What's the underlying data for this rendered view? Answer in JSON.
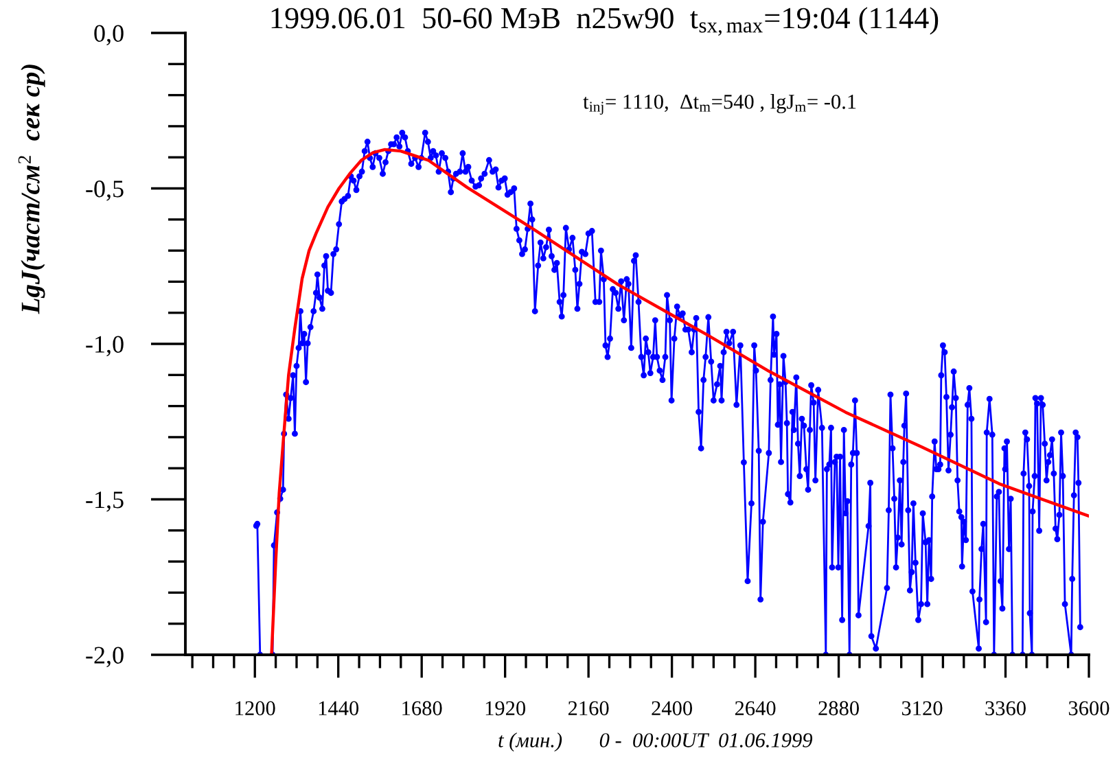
{
  "chart_data": {
    "type": "line",
    "title": "1999.06.01  50-60 МэВ  n25w90  t$_{sx,max}$=19:04 (1144)",
    "xlabel": "t (мин.)       0 -  00:00UT  01.06.1999",
    "ylabel": "LgJ(част/см$^{2}$  сек ср)",
    "annotations": [
      "t$_{inj}$= 1110,  Δt$_{m}$=540 , lgJ$_{m}$= -0.1"
    ],
    "xlim": [
      1000,
      3600
    ],
    "ylim": [
      -2.0,
      0.0
    ],
    "xticks": [
      {
        "value": 1020,
        "label": null
      },
      {
        "value": 1080,
        "label": null
      },
      {
        "value": 1140,
        "label": null
      },
      1200,
      {
        "value": 1260,
        "label": null
      },
      {
        "value": 1320,
        "label": null
      },
      {
        "value": 1380,
        "label": null
      },
      1440,
      {
        "value": 1500,
        "label": null
      },
      {
        "value": 1560,
        "label": null
      },
      {
        "value": 1620,
        "label": null
      },
      1680,
      {
        "value": 1740,
        "label": null
      },
      {
        "value": 1800,
        "label": null
      },
      {
        "value": 1860,
        "label": null
      },
      1920,
      {
        "value": 1980,
        "label": null
      },
      {
        "value": 2040,
        "label": null
      },
      {
        "value": 2100,
        "label": null
      },
      2160,
      {
        "value": 2220,
        "label": null
      },
      {
        "value": 2280,
        "label": null
      },
      {
        "value": 2340,
        "label": null
      },
      2400,
      {
        "value": 2460,
        "label": null
      },
      {
        "value": 2520,
        "label": null
      },
      {
        "value": 2580,
        "label": null
      },
      2640,
      {
        "value": 2700,
        "label": null
      },
      {
        "value": 2760,
        "label": null
      },
      {
        "value": 2820,
        "label": null
      },
      2880,
      {
        "value": 2940,
        "label": null
      },
      {
        "value": 3000,
        "label": null
      },
      {
        "value": 3060,
        "label": null
      },
      3120,
      {
        "value": 3180,
        "label": null
      },
      {
        "value": 3240,
        "label": null
      },
      {
        "value": 3300,
        "label": null
      },
      3360,
      {
        "value": 3420,
        "label": null
      },
      {
        "value": 3480,
        "label": null
      },
      {
        "value": 3540,
        "label": null
      },
      3600
    ],
    "yticks": [
      {
        "value": -2.0,
        "label": "-2,0"
      },
      {
        "value": -1.9,
        "label": null
      },
      {
        "value": -1.8,
        "label": null
      },
      {
        "value": -1.7,
        "label": null
      },
      {
        "value": -1.6,
        "label": null
      },
      {
        "value": -1.5,
        "label": "-1,5"
      },
      {
        "value": -1.4,
        "label": null
      },
      {
        "value": -1.3,
        "label": null
      },
      {
        "value": -1.2,
        "label": null
      },
      {
        "value": -1.1,
        "label": null
      },
      {
        "value": -1.0,
        "label": "-1,0"
      },
      {
        "value": -0.9,
        "label": null
      },
      {
        "value": -0.8,
        "label": null
      },
      {
        "value": -0.7,
        "label": null
      },
      {
        "value": -0.6,
        "label": null
      },
      {
        "value": -0.5,
        "label": "-0,5"
      },
      {
        "value": -0.4,
        "label": null
      },
      {
        "value": -0.3,
        "label": null
      },
      {
        "value": -0.2,
        "label": null
      },
      {
        "value": -0.1,
        "label": null
      },
      {
        "value": 0.0,
        "label": "0,0"
      }
    ],
    "series": [
      {
        "color": "#0000ff",
        "marker": "circle",
        "x": [
          1204,
          1207,
          1215,
          1233,
          1251,
          1255,
          1264,
          1273,
          1281,
          1284,
          1290,
          1297,
          1303,
          1310,
          1315,
          1320,
          1326,
          1331,
          1336,
          1342,
          1347,
          1352,
          1360,
          1369,
          1376,
          1380,
          1386,
          1394,
          1400,
          1405,
          1410,
          1419,
          1426,
          1434,
          1442,
          1450,
          1458,
          1468,
          1476,
          1484,
          1492,
          1501,
          1508,
          1516,
          1524,
          1531,
          1539,
          1547,
          1558,
          1568,
          1576,
          1584,
          1592,
          1600,
          1608,
          1616,
          1624,
          1632,
          1640,
          1650,
          1661,
          1671,
          1679,
          1690,
          1698,
          1706,
          1713,
          1721,
          1729,
          1738,
          1748,
          1756,
          1764,
          1771,
          1779,
          1790,
          1798,
          1806,
          1814,
          1824,
          1835,
          1845,
          1851,
          1861,
          1874,
          1884,
          1893,
          1901,
          1910,
          1919,
          1927,
          1936,
          1946,
          1953,
          1961,
          1969,
          1977,
          1985,
          1993,
          1998,
          2006,
          2015,
          2022,
          2030,
          2038,
          2046,
          2054,
          2062,
          2069,
          2077,
          2083,
          2088,
          2095,
          2104,
          2114,
          2122,
          2128,
          2134,
          2141,
          2151,
          2160,
          2170,
          2180,
          2191,
          2196,
          2204,
          2209,
          2215,
          2222,
          2230,
          2238,
          2246,
          2254,
          2262,
          2270,
          2275,
          2283,
          2291,
          2296,
          2304,
          2312,
          2319,
          2325,
          2332,
          2338,
          2346,
          2352,
          2357,
          2365,
          2373,
          2381,
          2386,
          2394,
          2399,
          2407,
          2415,
          2423,
          2431,
          2439,
          2447,
          2457,
          2464,
          2470,
          2477,
          2484,
          2491,
          2497,
          2505,
          2513,
          2520,
          2530,
          2539,
          2543,
          2549,
          2557,
          2565,
          2576,
          2586,
          2597,
          2607,
          2618,
          2629,
          2637,
          2642,
          2650,
          2655,
          2662,
          2679,
          2684,
          2691,
          2694,
          2701,
          2705,
          2710,
          2714,
          2721,
          2727,
          2731,
          2734,
          2741,
          2747,
          2751,
          2758,
          2763,
          2768,
          2774,
          2780,
          2787,
          2792,
          2797,
          2801,
          2808,
          2813,
          2821,
          2832,
          2843,
          2846,
          2853,
          2858,
          2861,
          2869,
          2874,
          2879,
          2884,
          2890,
          2895,
          2900,
          2905,
          2911,
          2916,
          2921,
          2927,
          2932,
          2937,
          2966,
          2971,
          2974,
          2987,
          3019,
          3024,
          3029,
          3035,
          3040,
          3045,
          3050,
          3056,
          3061,
          3066,
          3069,
          3074,
          3080,
          3085,
          3090,
          3095,
          3101,
          3109,
          3117,
          3122,
          3130,
          3135,
          3140,
          3146,
          3149,
          3156,
          3161,
          3167,
          3172,
          3175,
          3180,
          3185,
          3190,
          3196,
          3202,
          3206,
          3211,
          3217,
          3222,
          3227,
          3233,
          3235,
          3240,
          3246,
          3251,
          3256,
          3262,
          3265,
          3283,
          3285,
          3291,
          3296,
          3304,
          3306,
          3314,
          3322,
          3327,
          3335,
          3341,
          3346,
          3351,
          3357,
          3359,
          3364,
          3370,
          3375,
          3380,
          3395,
          3409,
          3412,
          3417,
          3422,
          3428,
          3430,
          3436,
          3438,
          3444,
          3446,
          3451,
          3457,
          3462,
          3467,
          3473,
          3478,
          3483,
          3488,
          3494,
          3499,
          3504,
          3509,
          3515,
          3520,
          3525,
          3531,
          3549,
          3552,
          3557,
          3562,
          3567,
          3570,
          3575
        ],
        "values": [
          -1.585,
          -1.579,
          -2.0,
          null,
          -2.0,
          -1.648,
          -1.542,
          -1.498,
          -1.469,
          -1.289,
          -1.163,
          -1.241,
          -1.174,
          -1.101,
          -1.289,
          -1.071,
          -1.013,
          -0.895,
          -0.998,
          -0.968,
          -1.123,
          -0.998,
          -0.946,
          -0.895,
          -0.836,
          -0.777,
          -0.851,
          -0.887,
          -0.748,
          -0.718,
          -0.829,
          -0.836,
          -0.711,
          -0.696,
          -0.615,
          -0.542,
          -0.534,
          -0.524,
          -0.461,
          -0.475,
          -0.505,
          -0.461,
          -0.446,
          -0.38,
          -0.35,
          -0.402,
          -0.431,
          -0.387,
          -0.402,
          -0.453,
          -0.416,
          -0.38,
          -0.358,
          -0.358,
          -0.336,
          -0.365,
          -0.321,
          -0.336,
          -0.38,
          -0.421,
          -0.402,
          -0.431,
          -0.402,
          -0.321,
          -0.35,
          -0.402,
          -0.38,
          -0.394,
          -0.446,
          -0.387,
          -0.402,
          -0.446,
          -0.512,
          -0.468,
          -0.453,
          -0.446,
          -0.387,
          -0.446,
          -0.431,
          -0.475,
          -0.494,
          -0.49,
          -0.468,
          -0.453,
          -0.409,
          -0.446,
          -0.439,
          -0.497,
          -0.475,
          -0.468,
          -0.52,
          -0.512,
          -0.5,
          -0.63,
          -0.667,
          -0.711,
          -0.696,
          -0.63,
          -0.549,
          -0.6,
          -0.895,
          -0.748,
          -0.674,
          -0.725,
          -0.689,
          -0.633,
          -0.718,
          -0.762,
          -0.74,
          -0.865,
          -0.912,
          -0.843,
          -0.627,
          -0.696,
          -0.659,
          -0.762,
          -0.887,
          -0.807,
          -0.704,
          -0.711,
          -0.645,
          -0.637,
          -0.865,
          -0.865,
          -0.7,
          -0.792,
          -1.005,
          -1.042,
          -0.983,
          -0.824,
          -0.836,
          -0.887,
          -0.799,
          -0.924,
          -0.792,
          -0.807,
          -1.013,
          -0.733,
          -0.715,
          -0.865,
          -1.042,
          -1.101,
          -0.983,
          -1.027,
          -1.094,
          -1.042,
          -0.924,
          -1.042,
          -1.086,
          -1.116,
          -1.042,
          -0.843,
          -0.924,
          -1.182,
          -0.983,
          -0.88,
          -0.909,
          -0.902,
          -0.954,
          -0.954,
          -1.027,
          -0.954,
          -0.917,
          -1.219,
          -1.336,
          -1.116,
          -1.042,
          -0.914,
          -1.057,
          -1.182,
          -1.13,
          -1.071,
          -1.182,
          -1.027,
          -0.961,
          -0.998,
          -0.961,
          -1.196,
          -1.005,
          -1.381,
          -1.763,
          -1.513,
          -1.005,
          -1.086,
          -1.344,
          -1.822,
          -1.572,
          -1.351,
          -1.116,
          -0.912,
          -1.035,
          -0.968,
          -1.26,
          -1.13,
          -1.38,
          -1.039,
          -1.123,
          -1.255,
          -1.483,
          -1.51,
          -1.219,
          -1.277,
          -1.108,
          -1.321,
          -1.425,
          -1.241,
          -1.263,
          -1.403,
          -1.469,
          -1.277,
          -1.133,
          -1.189,
          -1.439,
          -1.148,
          -1.27,
          -2.0,
          -1.403,
          -1.388,
          -1.27,
          -1.719,
          -1.38,
          -1.363,
          -1.719,
          -1.363,
          -1.888,
          -1.277,
          -1.545,
          -1.506,
          -2.0,
          -1.388,
          -1.351,
          -1.182,
          -1.351,
          -1.873,
          -1.586,
          -1.447,
          -1.94,
          -1.98,
          -1.785,
          -1.535,
          -1.163,
          -1.336,
          -1.498,
          -1.719,
          -1.623,
          -1.439,
          -1.645,
          -1.38,
          -1.263,
          -1.16,
          -1.535,
          -1.793,
          -1.734,
          -1.513,
          -1.704,
          -1.888,
          -1.837,
          -1.545,
          -1.638,
          -1.837,
          -1.631,
          -1.756,
          -1.491,
          -1.314,
          -1.403,
          -1.403,
          -1.388,
          -1.101,
          -1.005,
          -1.027,
          -1.171,
          -1.407,
          -1.292,
          -1.204,
          -1.089,
          -1.174,
          -1.439,
          -1.539,
          -1.557,
          -1.716,
          -1.572,
          -1.631,
          -1.196,
          -1.142,
          -1.241,
          -1.796,
          -1.98,
          -1.822,
          -1.66,
          -1.579,
          -1.895,
          -1.285,
          -1.177,
          -1.292,
          -2.0,
          -1.491,
          -1.476,
          -1.763,
          -1.851,
          -1.336,
          -1.403,
          -1.314,
          -1.66,
          -1.498,
          -2.0,
          null,
          -2.0,
          -1.417,
          -1.285,
          -1.307,
          -1.457,
          -1.866,
          -2.0,
          -1.539,
          -1.425,
          -1.174,
          -1.192,
          -1.601,
          -1.174,
          -1.196,
          -1.321,
          -1.439,
          -1.38,
          -1.358,
          -1.307,
          -1.417,
          -1.594,
          -1.628,
          -1.55,
          -1.285,
          -1.425,
          -1.837,
          -2.0,
          -1.756,
          -1.487,
          -1.285,
          -1.3,
          -1.447,
          -1.911
        ]
      },
      {
        "color": "#ff0000",
        "marker": "none",
        "x": [
          1248,
          1260,
          1270,
          1284,
          1297,
          1315,
          1336,
          1356,
          1376,
          1410,
          1442,
          1475,
          1506,
          1540,
          1574,
          1620,
          1700,
          1811,
          2000,
          2246,
          2500,
          2681,
          2900,
          3116,
          3342,
          3600
        ],
        "values": [
          -2.0,
          -1.7,
          -1.48,
          -1.28,
          -1.1,
          -0.95,
          -0.79,
          -0.7,
          -0.645,
          -0.56,
          -0.5,
          -0.45,
          -0.41,
          -0.385,
          -0.375,
          -0.38,
          -0.41,
          -0.497,
          -0.63,
          -0.81,
          -0.97,
          -1.089,
          -1.22,
          -1.33,
          -1.45,
          -1.554
        ]
      }
    ]
  }
}
